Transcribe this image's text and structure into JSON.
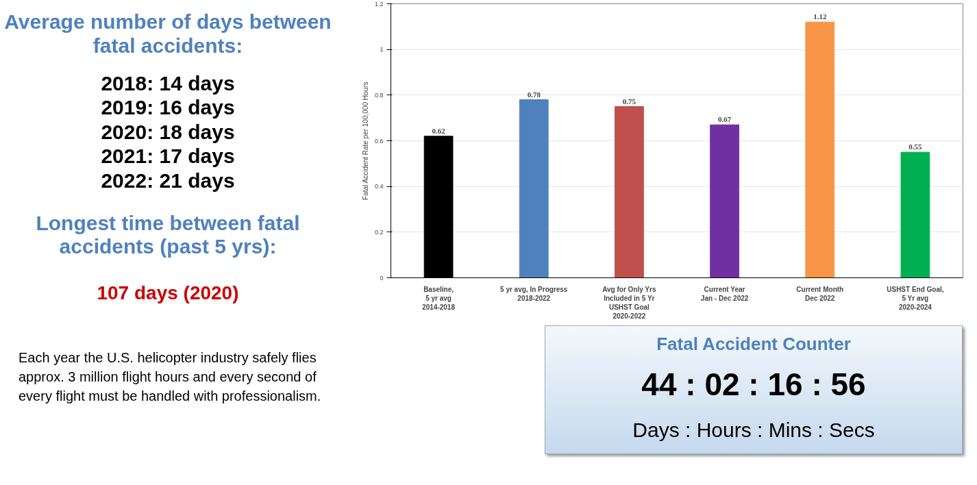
{
  "chart_data": {
    "type": "bar",
    "ylabel": "Fatal Accident Rate per 100,000 Hours",
    "categories": [
      "Baseline,\n5 yr avg\n2014-2018",
      "5 yr avg, In Progress\n2018-2022",
      "Avg for Only Yrs\nIncluded in 5 Yr\nUSHST Goal\n2020-2022",
      "Current Year\nJan - Dec 2022",
      "Current Month\nDec 2022",
      "USHST End Goal,\n5 Yr avg\n2020-2024"
    ],
    "values": [
      0.62,
      0.78,
      0.75,
      0.67,
      1.12,
      0.55
    ],
    "colors": [
      "#000000",
      "#4f81bd",
      "#c0504d",
      "#7030a0",
      "#f79646",
      "#00b050"
    ],
    "ylim": [
      0,
      1.2
    ],
    "yticks": [
      0,
      0.2,
      0.4,
      0.6,
      0.8,
      1,
      1.2
    ],
    "grid": "y",
    "data_labels": true,
    "annotations": [
      "Average number of days between fatal accidents:",
      "2018: 14 days",
      "2019: 16 days",
      "2020: 18 days",
      "2021: 17 days",
      "2022: 21 days",
      "Longest time between fatal accidents (past 5 yrs):",
      "107 days (2020)",
      "Each year the U.S. helicopter industry safely flies approx. 3 million flight hours and every second of every flight must be handled with professionalism.",
      "Fatal Accident Counter",
      "44 : 02 : 16 : 56",
      "Days : Hours : Mins : Secs"
    ]
  }
}
